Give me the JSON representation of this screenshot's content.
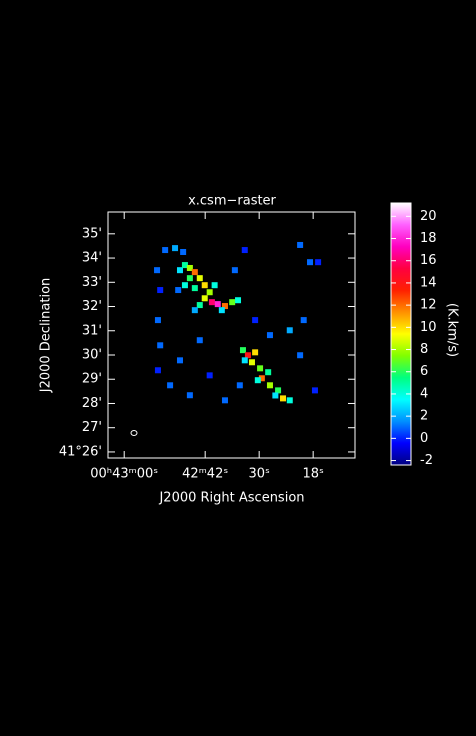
{
  "chart_data": {
    "type": "heatmap",
    "title": "x.csm−raster",
    "x_label": "J2000 Right Ascension",
    "y_label": "J2000 Declination",
    "colorbar_label": "(K.km/s)",
    "xlim": [
      2583.6,
      2528.7
    ],
    "xticks": [
      {
        "value": 2580,
        "label": "00ʰ43ᵐ00ˢ"
      },
      {
        "value": 2562,
        "label": "42ᵐ42ˢ"
      },
      {
        "value": 2550,
        "label": "30ˢ"
      },
      {
        "value": 2538,
        "label": "18ˢ"
      }
    ],
    "ylim": [
      25.75,
      35.9
    ],
    "yticks": [
      {
        "value": 26,
        "label": "41°26'"
      },
      {
        "value": 27,
        "label": "27'"
      },
      {
        "value": 28,
        "label": "28'"
      },
      {
        "value": 29,
        "label": "29'"
      },
      {
        "value": 30,
        "label": "30'"
      },
      {
        "value": 31,
        "label": "31'"
      },
      {
        "value": 32,
        "label": "32'"
      },
      {
        "value": 33,
        "label": "33'"
      },
      {
        "value": 34,
        "label": "34'"
      },
      {
        "value": 35,
        "label": "35'"
      }
    ],
    "clim": [
      -2.4,
      21.2
    ],
    "cticks": [
      -2,
      0,
      2,
      4,
      6,
      8,
      10,
      12,
      14,
      16,
      18,
      20
    ],
    "colormap": [
      "#000080",
      "#0000ff",
      "#0090ff",
      "#00ffff",
      "#00ff80",
      "#80ff00",
      "#ffff00",
      "#ff9000",
      "#ff2000",
      "#ff0040",
      "#ff00c0",
      "#ff60ff",
      "#ffffff"
    ],
    "x": [
      2567.6,
      2566.5,
      2565.4,
      2564.3,
      2563.2,
      2565.4,
      2566.5,
      2564.3,
      2562.1,
      2561.0,
      2562.1,
      2560.5,
      2559.2,
      2557.6,
      2556.0,
      2554.7,
      2563.2,
      2564.3,
      2568.0,
      2559.9,
      2558.3,
      2553.6,
      2552.5,
      2550.9,
      2551.6,
      2549.8,
      2549.4,
      2548.0,
      2547.6,
      2545.8,
      2544.7,
      2543.2,
      2546.4,
      2550.3,
      2553.2,
      2572.7,
      2572.0,
      2572.5,
      2572.0,
      2572.5,
      2570.9,
      2568.7,
      2566.9,
      2555.4,
      2553.2,
      2540.9,
      2538.7,
      2536.9,
      2540.1,
      2543.2,
      2547.6,
      2563.2,
      2567.6,
      2561.0,
      2565.4,
      2557.6,
      2540.9,
      2537.6,
      2569.8,
      2554.3,
      2550.9
    ],
    "y": [
      33.5,
      33.71,
      33.59,
      33.42,
      33.17,
      33.17,
      32.88,
      32.76,
      32.88,
      32.59,
      32.34,
      32.18,
      32.1,
      32.02,
      32.18,
      32.26,
      32.06,
      31.85,
      32.68,
      32.88,
      31.85,
      30.2,
      29.99,
      30.11,
      29.7,
      29.45,
      29.04,
      29.29,
      28.75,
      28.54,
      28.21,
      28.13,
      28.33,
      28.96,
      29.78,
      33.5,
      32.68,
      31.44,
      30.4,
      29.37,
      34.33,
      34.41,
      34.25,
      33.5,
      34.33,
      34.54,
      33.83,
      33.83,
      31.44,
      31.02,
      30.82,
      30.61,
      29.78,
      29.16,
      28.34,
      28.13,
      29.99,
      28.54,
      28.75,
      28.75,
      31.44
    ],
    "values": [
      3,
      5,
      8,
      12,
      9,
      6,
      4,
      5,
      10,
      8,
      9,
      16,
      18,
      12,
      7,
      4,
      5,
      2,
      1,
      4,
      3,
      6,
      14,
      10,
      9,
      7,
      12,
      5,
      8,
      6,
      10,
      4,
      3,
      4,
      3,
      1,
      0,
      1,
      1,
      0,
      1,
      2,
      1,
      1,
      0,
      1,
      1,
      0,
      1,
      2,
      1,
      1,
      1,
      0,
      1,
      1,
      1,
      0,
      1,
      1,
      0
    ]
  }
}
